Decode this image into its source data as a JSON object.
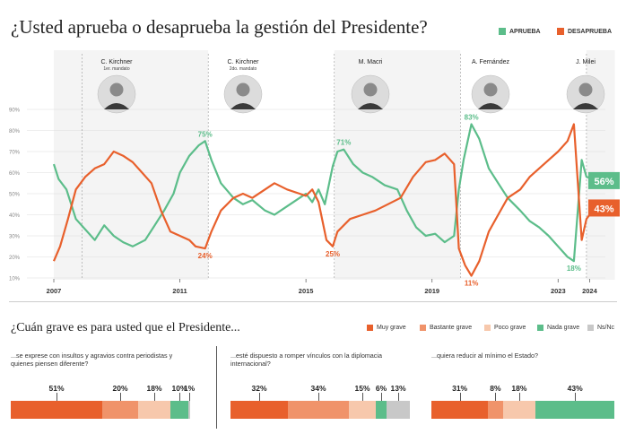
{
  "title": "¿Usted aprueba o desaprueba la gestión del Presidente?",
  "colors": {
    "aprueba": "#5cbd8a",
    "desaprueba": "#e8602c",
    "muy_grave": "#e8602c",
    "bastante_grave": "#f0936a",
    "poco_grave": "#f7c8ac",
    "nada_grave": "#5cbd8a",
    "ns_nc": "#c8c8c8"
  },
  "legend_top": {
    "aprueba": "APRUEBA",
    "desaprueba": "DESAPRUEBA"
  },
  "presidents": [
    {
      "name": "C. Kirchner",
      "term": "1er. mandato",
      "icon": "portrait-icon"
    },
    {
      "name": "C. Kirchner",
      "term": "2do. mandato",
      "icon": "portrait-icon"
    },
    {
      "name": "M. Macri",
      "term": "",
      "icon": "portrait-icon"
    },
    {
      "name": "A. Fernández",
      "term": "",
      "icon": "portrait-icon"
    },
    {
      "name": "J. Milei",
      "term": "",
      "icon": "portrait-icon"
    }
  ],
  "chart_data": {
    "type": "line",
    "x_ticks": [
      "2007",
      "2011",
      "2015",
      "2019",
      "2023",
      "2024"
    ],
    "y_ticks": [
      "90%",
      "80%",
      "70%",
      "60%",
      "50%",
      "40%",
      "30%",
      "20%",
      "10%"
    ],
    "ylim": [
      10,
      90
    ],
    "xlim": [
      2007,
      2024.5
    ],
    "term_starts": [
      2007.9,
      2011.9,
      2015.9,
      2019.9,
      2023.9
    ],
    "series": [
      {
        "name": "APRUEBA",
        "points": [
          [
            2007.0,
            64
          ],
          [
            2007.15,
            57
          ],
          [
            2007.4,
            52
          ],
          [
            2007.7,
            38
          ],
          [
            2008.0,
            33
          ],
          [
            2008.3,
            28
          ],
          [
            2008.6,
            35
          ],
          [
            2008.9,
            30
          ],
          [
            2009.2,
            27
          ],
          [
            2009.5,
            25
          ],
          [
            2009.9,
            28
          ],
          [
            2010.2,
            35
          ],
          [
            2010.5,
            42
          ],
          [
            2010.8,
            50
          ],
          [
            2011.0,
            60
          ],
          [
            2011.3,
            68
          ],
          [
            2011.6,
            73
          ],
          [
            2011.8,
            75
          ],
          [
            2012.0,
            66
          ],
          [
            2012.3,
            55
          ],
          [
            2012.7,
            48
          ],
          [
            2013.0,
            45
          ],
          [
            2013.3,
            47
          ],
          [
            2013.7,
            42
          ],
          [
            2014.0,
            40
          ],
          [
            2014.4,
            44
          ],
          [
            2014.8,
            48
          ],
          [
            2015.0,
            50
          ],
          [
            2015.2,
            46
          ],
          [
            2015.4,
            52
          ],
          [
            2015.6,
            45
          ],
          [
            2015.85,
            63
          ],
          [
            2016.0,
            70
          ],
          [
            2016.2,
            71
          ],
          [
            2016.5,
            64
          ],
          [
            2016.8,
            60
          ],
          [
            2017.1,
            58
          ],
          [
            2017.5,
            54
          ],
          [
            2017.9,
            52
          ],
          [
            2018.2,
            42
          ],
          [
            2018.5,
            34
          ],
          [
            2018.8,
            30
          ],
          [
            2019.1,
            31
          ],
          [
            2019.4,
            27
          ],
          [
            2019.7,
            30
          ],
          [
            2019.85,
            52
          ],
          [
            2020.0,
            66
          ],
          [
            2020.25,
            83
          ],
          [
            2020.5,
            76
          ],
          [
            2020.8,
            62
          ],
          [
            2021.1,
            55
          ],
          [
            2021.4,
            48
          ],
          [
            2021.8,
            42
          ],
          [
            2022.1,
            37
          ],
          [
            2022.4,
            34
          ],
          [
            2022.7,
            30
          ],
          [
            2023.0,
            25
          ],
          [
            2023.3,
            20
          ],
          [
            2023.5,
            18
          ],
          [
            2023.75,
            66
          ],
          [
            2023.9,
            58
          ],
          [
            2024.1,
            57
          ],
          [
            2024.3,
            56
          ],
          [
            2024.5,
            56
          ]
        ]
      },
      {
        "name": "DESAPRUEBA",
        "points": [
          [
            2007.0,
            18
          ],
          [
            2007.2,
            25
          ],
          [
            2007.45,
            38
          ],
          [
            2007.7,
            52
          ],
          [
            2008.0,
            58
          ],
          [
            2008.3,
            62
          ],
          [
            2008.6,
            64
          ],
          [
            2008.9,
            70
          ],
          [
            2009.2,
            68
          ],
          [
            2009.5,
            65
          ],
          [
            2009.8,
            60
          ],
          [
            2010.1,
            55
          ],
          [
            2010.4,
            42
          ],
          [
            2010.7,
            32
          ],
          [
            2011.0,
            30
          ],
          [
            2011.3,
            28
          ],
          [
            2011.5,
            25
          ],
          [
            2011.8,
            24
          ],
          [
            2012.0,
            32
          ],
          [
            2012.3,
            42
          ],
          [
            2012.7,
            48
          ],
          [
            2013.0,
            50
          ],
          [
            2013.3,
            48
          ],
          [
            2013.7,
            52
          ],
          [
            2014.0,
            55
          ],
          [
            2014.4,
            52
          ],
          [
            2014.8,
            50
          ],
          [
            2015.0,
            49
          ],
          [
            2015.2,
            52
          ],
          [
            2015.4,
            46
          ],
          [
            2015.65,
            28
          ],
          [
            2015.85,
            25
          ],
          [
            2016.0,
            32
          ],
          [
            2016.4,
            38
          ],
          [
            2016.8,
            40
          ],
          [
            2017.2,
            42
          ],
          [
            2017.6,
            45
          ],
          [
            2018.0,
            48
          ],
          [
            2018.4,
            58
          ],
          [
            2018.8,
            65
          ],
          [
            2019.1,
            66
          ],
          [
            2019.4,
            69
          ],
          [
            2019.7,
            64
          ],
          [
            2019.85,
            24
          ],
          [
            2020.05,
            16
          ],
          [
            2020.25,
            11
          ],
          [
            2020.5,
            18
          ],
          [
            2020.8,
            32
          ],
          [
            2021.1,
            40
          ],
          [
            2021.4,
            48
          ],
          [
            2021.8,
            52
          ],
          [
            2022.1,
            58
          ],
          [
            2022.4,
            62
          ],
          [
            2022.7,
            66
          ],
          [
            2023.0,
            70
          ],
          [
            2023.3,
            75
          ],
          [
            2023.5,
            83
          ],
          [
            2023.75,
            28
          ],
          [
            2023.9,
            38
          ],
          [
            2024.1,
            42
          ],
          [
            2024.3,
            43
          ],
          [
            2024.5,
            43
          ]
        ]
      }
    ],
    "annotations": [
      {
        "text": "75%",
        "series": "APRUEBA",
        "x": 2011.8,
        "y": 75
      },
      {
        "text": "24%",
        "series": "DESAPRUEBA",
        "x": 2011.8,
        "y": 24
      },
      {
        "text": "71%",
        "series": "APRUEBA",
        "x": 2016.2,
        "y": 71
      },
      {
        "text": "25%",
        "series": "DESAPRUEBA",
        "x": 2015.85,
        "y": 25
      },
      {
        "text": "83%",
        "series": "APRUEBA",
        "x": 2020.25,
        "y": 83
      },
      {
        "text": "11%",
        "series": "DESAPRUEBA",
        "x": 2020.25,
        "y": 11
      },
      {
        "text": "18%",
        "series": "APRUEBA",
        "x": 2023.5,
        "y": 18
      }
    ],
    "end_labels": [
      {
        "text": "56%",
        "series": "APRUEBA",
        "value": 56
      },
      {
        "text": "43%",
        "series": "DESAPRUEBA",
        "value": 43
      }
    ]
  },
  "section2": {
    "subtitle": "¿Cuán grave es para usted que el Presidente...",
    "legend": [
      "Muy grave",
      "Bastante grave",
      "Poco grave",
      "Nada grave",
      "Ns/Nc"
    ],
    "questions": [
      {
        "text": "...se exprese con insultos y agravios contra periodistas y quienes piensen diferente?",
        "values": [
          51,
          20,
          18,
          10,
          1
        ],
        "labels": [
          "51%",
          "20%",
          "18%",
          "10%",
          "1%"
        ]
      },
      {
        "text": "...esté dispuesto a romper vínculos con la diplomacia internacional?",
        "values": [
          32,
          34,
          15,
          6,
          13
        ],
        "labels": [
          "32%",
          "34%",
          "15%",
          "6%",
          "13%"
        ]
      },
      {
        "text": "...quiera reducir al mínimo el Estado?",
        "values": [
          31,
          8,
          18,
          43,
          0
        ],
        "labels": [
          "31%",
          "8%",
          "18%",
          "43%",
          ""
        ]
      }
    ]
  }
}
